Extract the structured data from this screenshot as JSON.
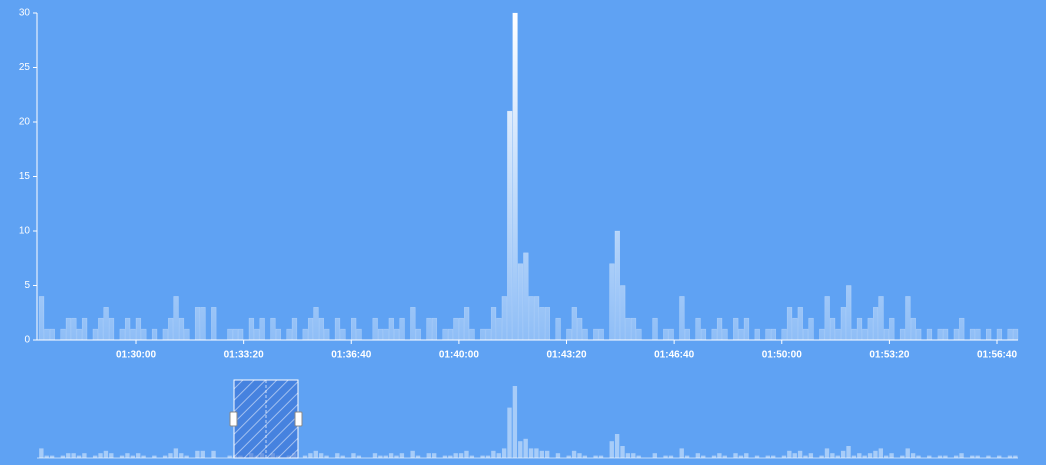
{
  "chart_data": {
    "type": "bar",
    "x": [
      "01:27:00",
      "01:27:10",
      "01:27:20",
      "01:27:30",
      "01:27:40",
      "01:27:50",
      "01:28:00",
      "01:28:10",
      "01:28:20",
      "01:28:30",
      "01:28:40",
      "01:28:50",
      "01:29:00",
      "01:29:10",
      "01:29:20",
      "01:29:30",
      "01:29:40",
      "01:29:50",
      "01:30:00",
      "01:30:10",
      "01:30:20",
      "01:30:30",
      "01:30:40",
      "01:30:50",
      "01:31:00",
      "01:31:10",
      "01:31:20",
      "01:31:30",
      "01:31:40",
      "01:31:50",
      "01:32:00",
      "01:32:10",
      "01:32:20",
      "01:32:30",
      "01:32:40",
      "01:32:50",
      "01:33:00",
      "01:33:10",
      "01:33:20",
      "01:33:30",
      "01:33:40",
      "01:33:50",
      "01:34:00",
      "01:34:10",
      "01:34:20",
      "01:34:30",
      "01:34:40",
      "01:34:50",
      "01:35:00",
      "01:35:10",
      "01:35:20",
      "01:35:30",
      "01:35:40",
      "01:35:50",
      "01:36:00",
      "01:36:10",
      "01:36:20",
      "01:36:30",
      "01:36:40",
      "01:36:50",
      "01:37:00",
      "01:37:10",
      "01:37:20",
      "01:37:30",
      "01:37:40",
      "01:37:50",
      "01:38:00",
      "01:38:10",
      "01:38:20",
      "01:38:30",
      "01:38:40",
      "01:38:50",
      "01:39:00",
      "01:39:10",
      "01:39:20",
      "01:39:30",
      "01:39:40",
      "01:39:50",
      "01:40:00",
      "01:40:10",
      "01:40:20",
      "01:40:30",
      "01:40:40",
      "01:40:50",
      "01:41:00",
      "01:41:10",
      "01:41:20",
      "01:41:30",
      "01:41:40",
      "01:41:50",
      "01:42:00",
      "01:42:10",
      "01:42:20",
      "01:42:30",
      "01:42:40",
      "01:42:50",
      "01:43:00",
      "01:43:10",
      "01:43:20",
      "01:43:30",
      "01:43:40",
      "01:43:50",
      "01:44:00",
      "01:44:10",
      "01:44:20",
      "01:44:30",
      "01:44:40",
      "01:44:50",
      "01:45:00",
      "01:45:10",
      "01:45:20",
      "01:45:30",
      "01:45:40",
      "01:45:50",
      "01:46:00",
      "01:46:10",
      "01:46:20",
      "01:46:30",
      "01:46:40",
      "01:46:50",
      "01:47:00",
      "01:47:10",
      "01:47:20",
      "01:47:30",
      "01:47:40",
      "01:47:50",
      "01:48:00",
      "01:48:10",
      "01:48:20",
      "01:48:30",
      "01:48:40",
      "01:48:50",
      "01:49:00",
      "01:49:10",
      "01:49:20",
      "01:49:30",
      "01:49:40",
      "01:49:50",
      "01:50:00",
      "01:50:10",
      "01:50:20",
      "01:50:30",
      "01:50:40",
      "01:50:50",
      "01:51:00",
      "01:51:10",
      "01:51:20",
      "01:51:30",
      "01:51:40",
      "01:51:50",
      "01:52:00",
      "01:52:10",
      "01:52:20",
      "01:52:30",
      "01:52:40",
      "01:52:50",
      "01:53:00",
      "01:53:10",
      "01:53:20",
      "01:53:30",
      "01:53:40",
      "01:53:50",
      "01:54:00",
      "01:54:10",
      "01:54:20",
      "01:54:30",
      "01:54:40",
      "01:54:50",
      "01:55:00",
      "01:55:10",
      "01:55:20",
      "01:55:30",
      "01:55:40",
      "01:55:50",
      "01:56:00",
      "01:56:10",
      "01:56:20",
      "01:56:30",
      "01:56:40",
      "01:56:50",
      "01:57:00",
      "01:57:10"
    ],
    "values": [
      4,
      1,
      1,
      0,
      1,
      2,
      2,
      1,
      2,
      0,
      1,
      2,
      3,
      2,
      0,
      1,
      2,
      1,
      2,
      1,
      0,
      1,
      0,
      1,
      2,
      4,
      2,
      1,
      0,
      3,
      3,
      0,
      3,
      0,
      0,
      1,
      1,
      1,
      0,
      2,
      1,
      2,
      0,
      2,
      1,
      0,
      1,
      2,
      0,
      1,
      2,
      3,
      2,
      1,
      0,
      2,
      1,
      0,
      2,
      1,
      0,
      0,
      2,
      1,
      1,
      2,
      1,
      2,
      0,
      3,
      1,
      0,
      2,
      2,
      0,
      1,
      1,
      2,
      2,
      3,
      1,
      0,
      1,
      1,
      3,
      2,
      4,
      21,
      30,
      7,
      8,
      4,
      4,
      3,
      3,
      0,
      2,
      0,
      1,
      3,
      2,
      1,
      0,
      1,
      1,
      0,
      7,
      10,
      5,
      2,
      2,
      1,
      0,
      0,
      2,
      0,
      1,
      1,
      0,
      4,
      1,
      0,
      2,
      1,
      0,
      1,
      2,
      1,
      0,
      2,
      1,
      2,
      0,
      1,
      0,
      1,
      1,
      0,
      1,
      3,
      2,
      3,
      1,
      2,
      0,
      1,
      4,
      2,
      1,
      3,
      5,
      1,
      2,
      1,
      2,
      3,
      4,
      1,
      2,
      0,
      1,
      4,
      2,
      1,
      0,
      1,
      0,
      1,
      1,
      0,
      1,
      2,
      0,
      1,
      1,
      0,
      1,
      0,
      1,
      0,
      1,
      1
    ],
    "color": "#ffffff",
    "xlim": [
      "01:26:56",
      "01:57:19"
    ],
    "xticks": [
      "01:30:00",
      "01:33:20",
      "01:36:40",
      "01:40:00",
      "01:43:20",
      "01:46:40",
      "01:50:00",
      "01:53:20",
      "01:56:40"
    ],
    "ylim": [
      0,
      30
    ],
    "yticks": [
      0,
      5,
      10,
      15,
      20,
      25,
      30
    ]
  }
}
